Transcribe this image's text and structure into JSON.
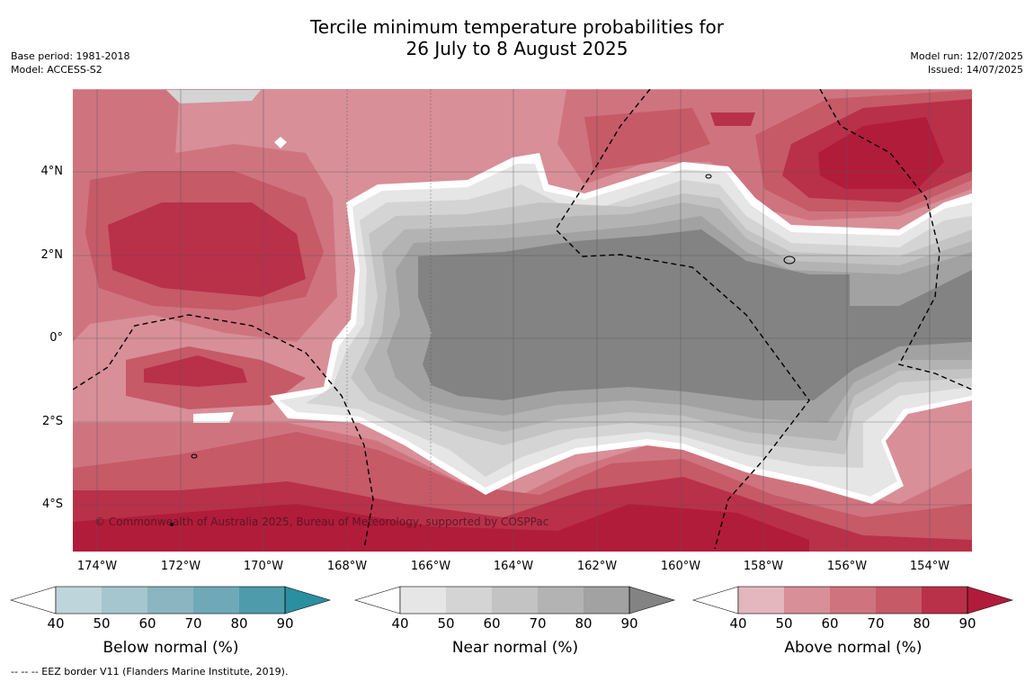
{
  "header": {
    "title_line1": "Tercile minimum temperature probabilities for",
    "title_line2": "26 July to 8 August 2025",
    "base_period": "Base period: 1981-2018",
    "model": "Model: ACCESS-S2",
    "model_run": "Model run: 12/07/2025",
    "issued": "Issued: 14/07/2025"
  },
  "map": {
    "lat_labels": [
      "4°N",
      "2°N",
      "0°",
      "2°S",
      "4°S"
    ],
    "lon_labels": [
      "174°W",
      "172°W",
      "170°W",
      "168°W",
      "166°W",
      "164°W",
      "162°W",
      "160°W",
      "158°W",
      "156°W",
      "154°W"
    ],
    "copyright": "© Commonwealth of Australia 2025, Bureau of Meteorology, supported by COSPPac"
  },
  "legends": [
    {
      "title": "Below normal (%)",
      "ticks": [
        "40",
        "50",
        "60",
        "70",
        "80",
        "90"
      ],
      "colors": [
        "#bfd5dc",
        "#a5c6ce",
        "#8ab5c1",
        "#6fa9b7",
        "#4e9cab",
        "#2a8fa0"
      ]
    },
    {
      "title": "Near normal (%)",
      "ticks": [
        "40",
        "50",
        "60",
        "70",
        "80",
        "90"
      ],
      "colors": [
        "#e6e6e6",
        "#d4d4d4",
        "#c3c3c3",
        "#b3b3b3",
        "#a2a2a2",
        "#838383"
      ]
    },
    {
      "title": "Above normal (%)",
      "ticks": [
        "40",
        "50",
        "60",
        "70",
        "80",
        "90"
      ],
      "colors": [
        "#e3b7bd",
        "#d88f98",
        "#cf747f",
        "#c65a67",
        "#b93049",
        "#b11c3a"
      ]
    }
  ],
  "footnote": "-- -- -- EEZ border V11 (Flanders Marine Institute, 2019)."
}
